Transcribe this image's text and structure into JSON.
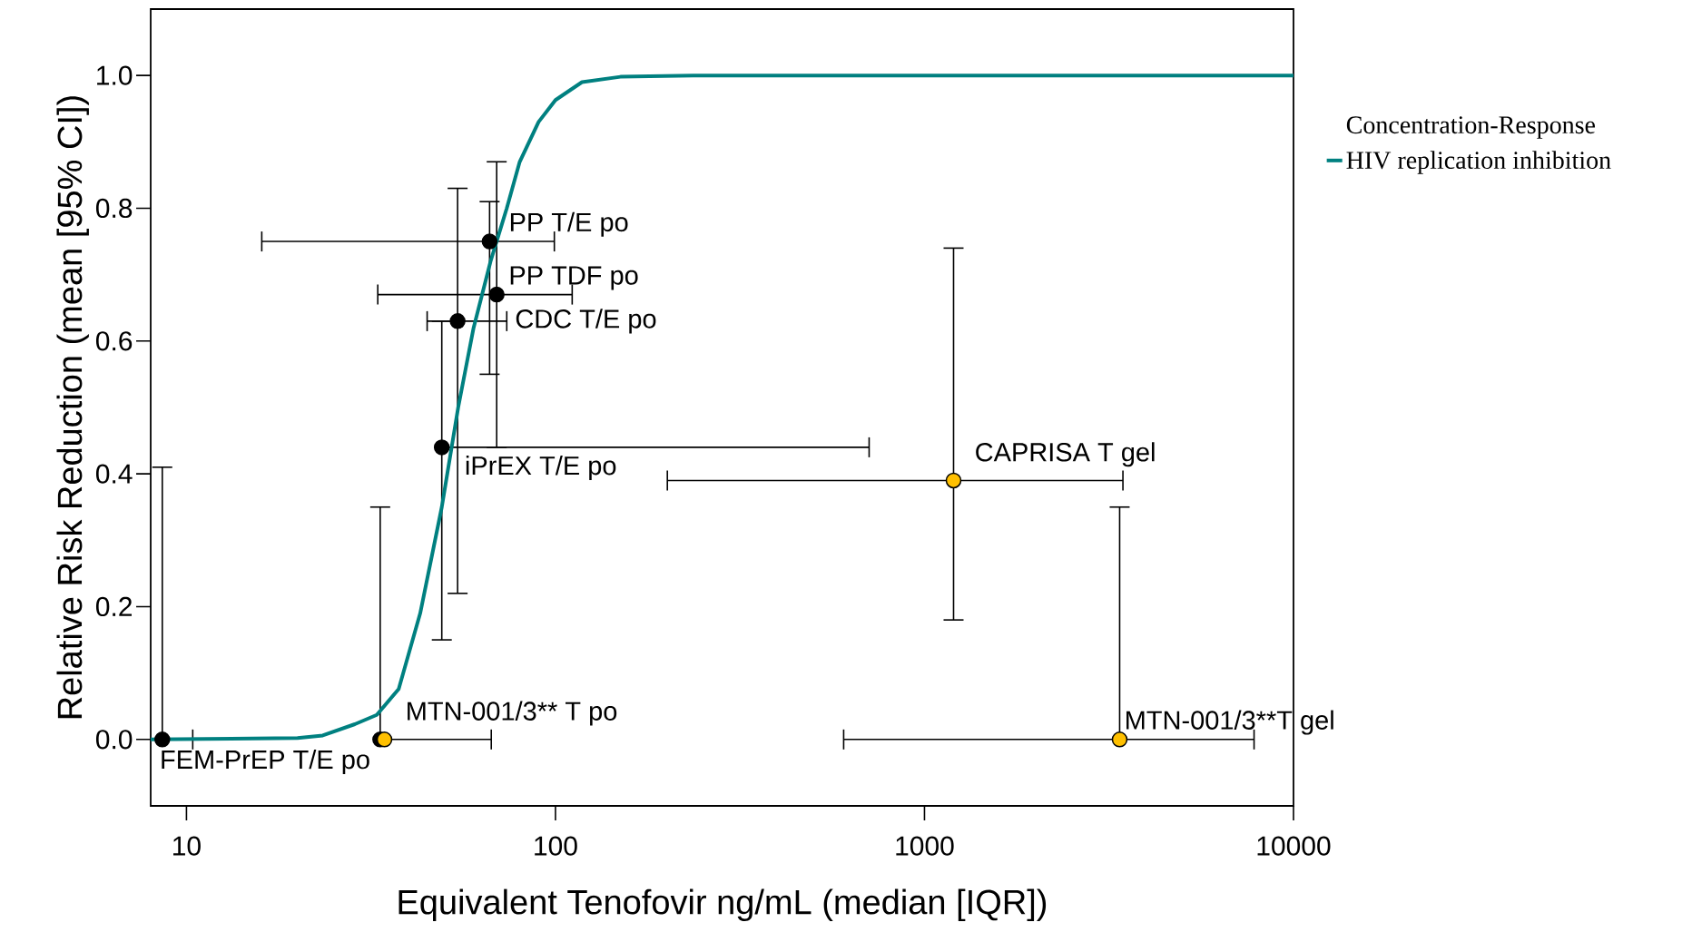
{
  "chart_data": {
    "type": "scatter",
    "xlabel": "Equivalent Tenofovir ng/mL (median [IQR])",
    "ylabel": "Relative Risk Reduction (mean [95% CI])",
    "legend_title": "Concentration-Response",
    "log": "x",
    "legend": "right",
    "marker": "circle",
    "xlim": [
      8,
      10000
    ],
    "xticks": [
      10,
      100,
      1000,
      10000
    ],
    "ylim": [
      -0.1,
      1.1
    ],
    "yticks": [
      {
        "value": 0,
        "label": "0.0"
      },
      {
        "value": 0.2,
        "label": "0.2"
      },
      {
        "value": 0.4,
        "label": "0.4"
      },
      {
        "value": 0.6,
        "label": "0.6"
      },
      {
        "value": 0.8,
        "label": "0.8"
      },
      {
        "value": 1,
        "label": "1.0"
      }
    ],
    "series": [
      {
        "type": "line",
        "name": "HIV replication inhibition",
        "color": "#008080",
        "marker": "none",
        "x": [
          8,
          20,
          23.4,
          28.6,
          32.8,
          37.6,
          43,
          49.2,
          54.5,
          60,
          66.7,
          73.8,
          80,
          90,
          100,
          118,
          150,
          250,
          1000,
          10000
        ],
        "values": [
          0,
          0.002,
          0.006,
          0.023,
          0.037,
          0.076,
          0.19,
          0.35,
          0.5,
          0.62,
          0.72,
          0.8,
          0.87,
          0.93,
          0.963,
          0.99,
          0.998,
          1,
          1,
          1
        ]
      },
      {
        "color": "#000000",
        "x": [
          8.6,
          33.5,
          49.2,
          54.3,
          69.3,
          66.3
        ],
        "values": [
          0,
          0,
          0.44,
          0.63,
          0.67,
          0.75
        ],
        "errors": [
          [
            0,
            0.41
          ],
          [
            0,
            0.35
          ],
          [
            0.15,
            0.63
          ],
          [
            0.22,
            0.83
          ],
          [
            0.44,
            0.87
          ],
          [
            0.55,
            0.81
          ]
        ],
        "xerrors": [
          [
            8,
            10.4
          ],
          [
            33.5,
            67
          ],
          [
            49.2,
            708
          ],
          [
            44.9,
            73.8
          ],
          [
            33,
            111
          ],
          [
            16,
            99.3
          ]
        ]
      },
      {
        "color": "#ffc000",
        "x": [
          34.4,
          1199,
          3380
        ],
        "values": [
          0,
          0.39,
          0
        ],
        "errors": [
          null,
          [
            0.18,
            0.74
          ],
          [
            0,
            0.35
          ]
        ],
        "xerrors": [
          null,
          [
            201,
            3450
          ],
          [
            604,
            7820
          ]
        ]
      }
    ],
    "annotations": [
      {
        "text": "PP T/E po",
        "x": 66.3,
        "y": 0.75
      },
      {
        "text": "PP TDF po",
        "x": 69.3,
        "y": 0.67
      },
      {
        "text": "CDC T/E po",
        "x": 54.3,
        "y": 0.63
      },
      {
        "text": "iPrEX T/E po",
        "x": 49.2,
        "y": 0.44
      },
      {
        "text": "CAPRISA T gel",
        "x": 1199,
        "y": 0.39
      },
      {
        "text": "MTN-001/3** T po",
        "x": 34.4,
        "y": 0
      },
      {
        "text": "MTN-001/3**T gel",
        "x": 3380,
        "y": 0
      },
      {
        "text": "FEM-PrEP T/E po",
        "x": 8.6,
        "y": 0
      }
    ]
  }
}
